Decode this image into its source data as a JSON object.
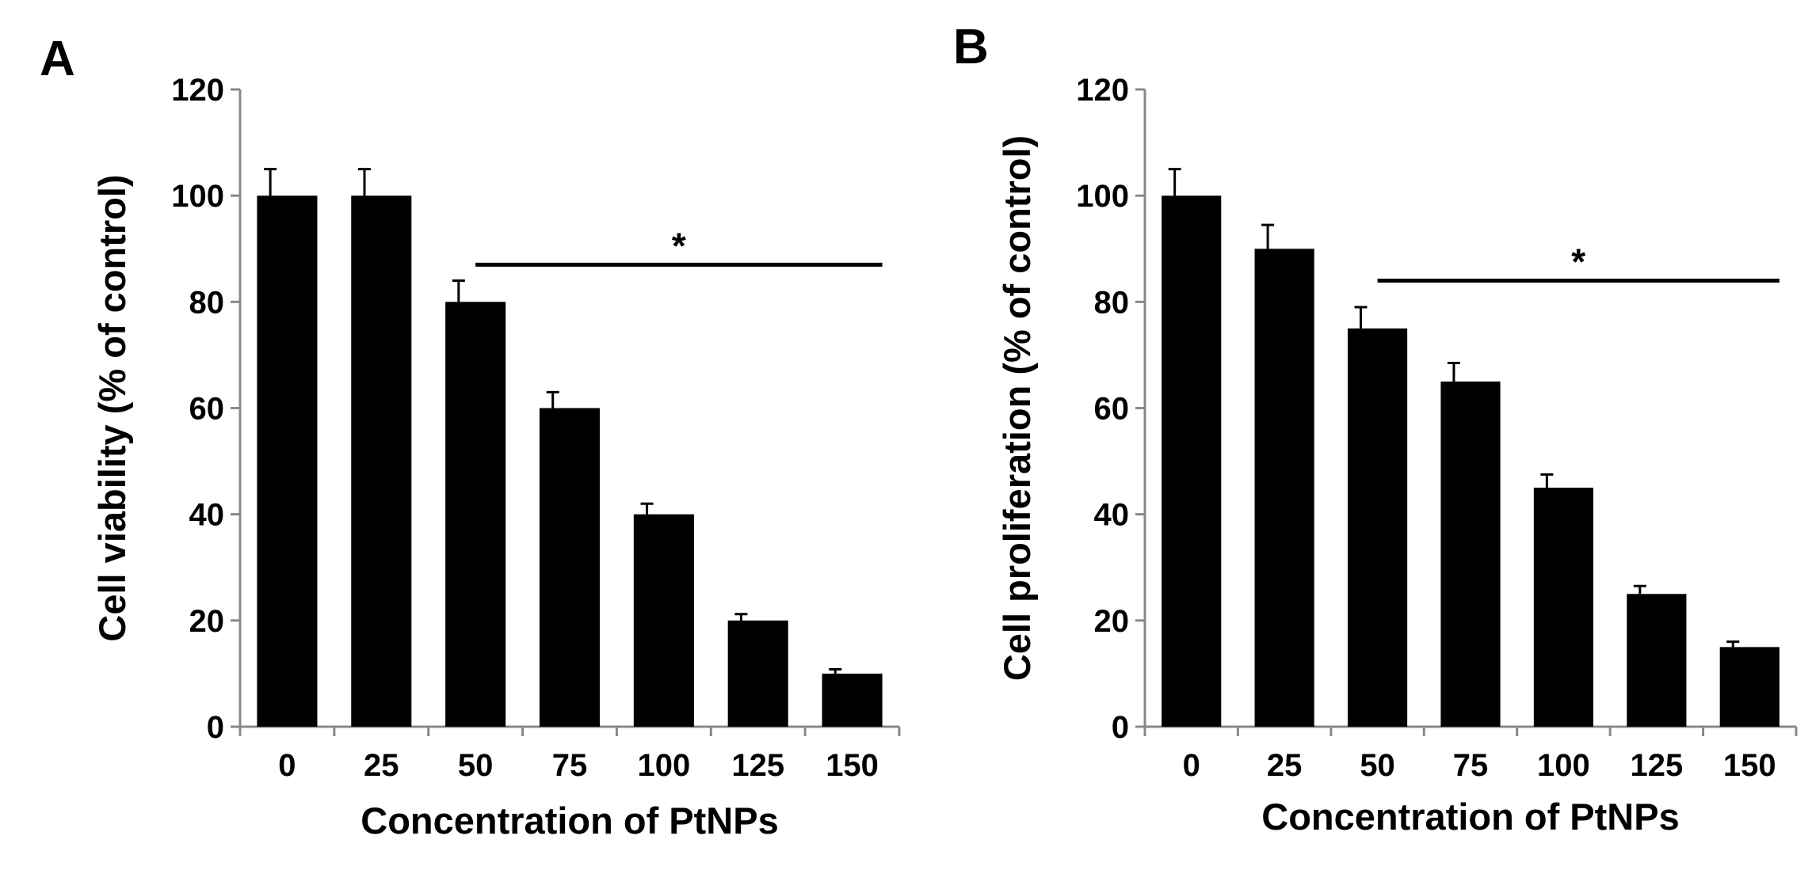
{
  "chart_data": [
    {
      "panel": "A",
      "type": "bar",
      "title": "",
      "xlabel": "Concentration of PtNPs",
      "ylabel": "Cell viability (% of control)",
      "categories": [
        "0",
        "25",
        "50",
        "75",
        "100",
        "125",
        "150"
      ],
      "values": [
        100,
        100,
        80,
        60,
        40,
        20,
        10
      ],
      "errors": [
        5,
        5,
        4,
        3,
        2,
        1.2,
        0.8
      ],
      "ylim": [
        0,
        120
      ],
      "yticks": [
        0,
        20,
        40,
        60,
        80,
        100,
        120
      ],
      "significance": {
        "from": "50",
        "to": "150",
        "at": 87,
        "label": "*"
      },
      "bar_color": "#000000",
      "grid": false
    },
    {
      "panel": "B",
      "type": "bar",
      "title": "",
      "xlabel": "Concentration of PtNPs",
      "ylabel": "Cell proliferation (% of control)",
      "categories": [
        "0",
        "25",
        "50",
        "75",
        "100",
        "125",
        "150"
      ],
      "values": [
        100,
        90,
        75,
        65,
        45,
        25,
        15
      ],
      "errors": [
        5,
        4.5,
        4,
        3.5,
        2.5,
        1.5,
        1
      ],
      "ylim": [
        0,
        120
      ],
      "yticks": [
        0,
        20,
        40,
        60,
        80,
        100,
        120
      ],
      "significance": {
        "from": "50",
        "to": "150",
        "at": 84,
        "label": "*"
      },
      "bar_color": "#000000",
      "grid": false
    }
  ]
}
